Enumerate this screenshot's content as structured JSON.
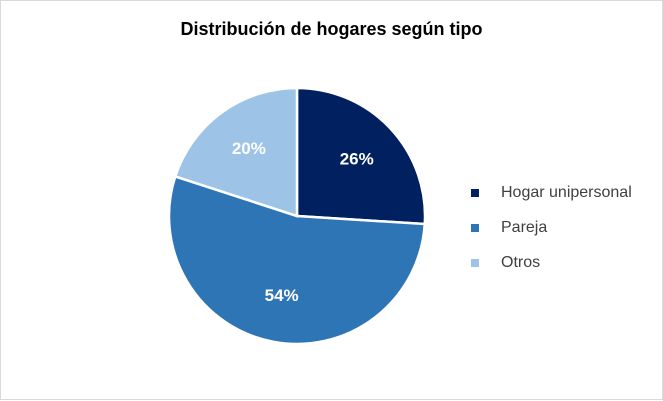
{
  "chart_data": {
    "type": "pie",
    "title": "Distribución de hogares según tipo",
    "categories": [
      "Hogar unipersonal",
      "Pareja",
      "Otros"
    ],
    "values": [
      26,
      54,
      20
    ],
    "labels": [
      "26%",
      "54%",
      "20%"
    ],
    "colors": [
      "#002060",
      "#2E75B6",
      "#9DC3E6"
    ],
    "legend_position": "right",
    "start_angle": "12 o'clock, clockwise"
  }
}
